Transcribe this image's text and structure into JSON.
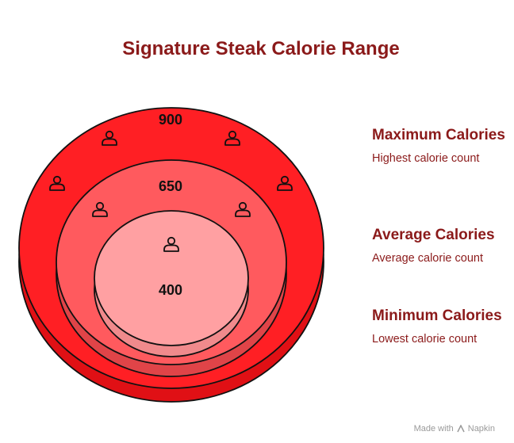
{
  "title": "Signature Steak Calorie Range",
  "circles": [
    {
      "label": "900",
      "color": "#ff1f24",
      "edge": "#e01015"
    },
    {
      "label": "650",
      "color": "#ff5a5e",
      "edge": "#e04448"
    },
    {
      "label": "400",
      "color": "#ffa0a2",
      "edge": "#f08a8c"
    }
  ],
  "legend": [
    {
      "title": "Maximum Calories",
      "desc": "Highest calorie count"
    },
    {
      "title": "Average Calories",
      "desc": "Average calorie count"
    },
    {
      "title": "Minimum Calories",
      "desc": "Lowest calorie count"
    }
  ],
  "footer": {
    "made_with": "Made with",
    "brand": "Napkin"
  },
  "icons": [
    "person-icon"
  ]
}
